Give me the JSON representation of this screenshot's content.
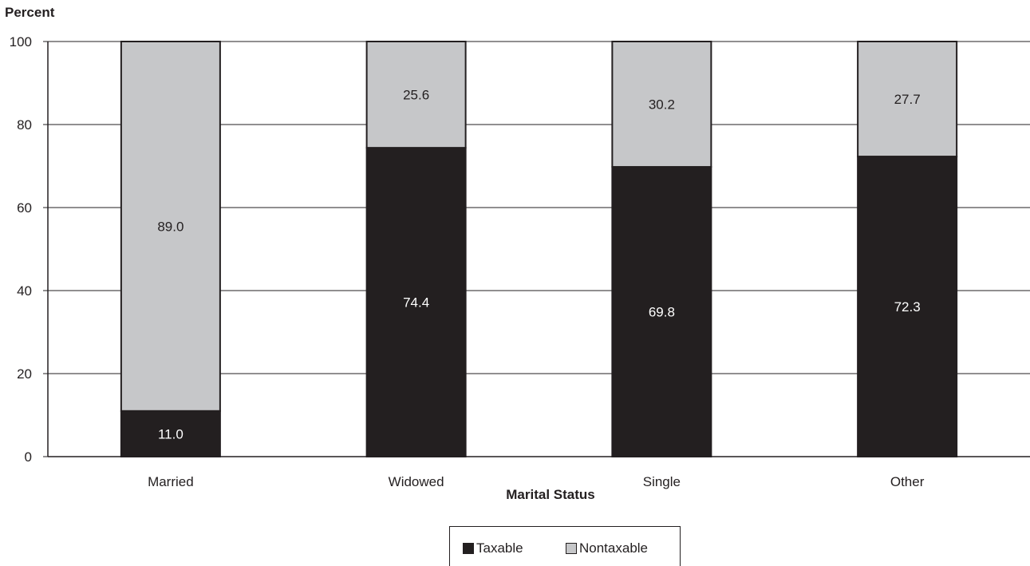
{
  "chart_data": {
    "type": "bar",
    "stacked": true,
    "ylabel": "Percent",
    "xlabel": "Marital Status",
    "ylim": [
      0,
      100
    ],
    "yticks": [
      0,
      20,
      40,
      60,
      80,
      100
    ],
    "grid": true,
    "legend_position": "bottom-center",
    "categories": [
      "Married",
      "Widowed",
      "Single",
      "Other"
    ],
    "series": [
      {
        "name": "Taxable",
        "values": [
          11.0,
          74.4,
          69.8,
          72.3
        ],
        "color": "#231f20",
        "label_color": "#ffffff"
      },
      {
        "name": "Nontaxable",
        "values": [
          89.0,
          25.6,
          30.2,
          27.7
        ],
        "color": "#c6c7c9",
        "label_color": "#231f20"
      }
    ]
  },
  "legend": {
    "taxable_label": "Taxable",
    "nontaxable_label": "Nontaxable"
  }
}
